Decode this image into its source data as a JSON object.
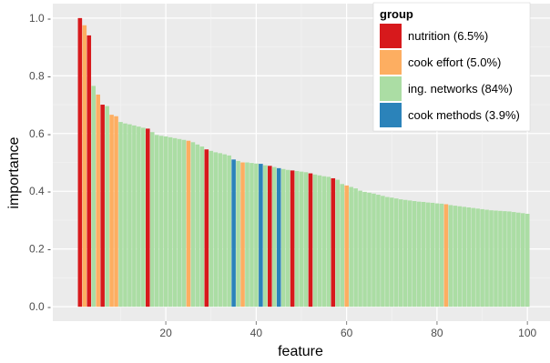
{
  "chart_data": {
    "type": "bar",
    "xlabel": "feature",
    "ylabel": "importance",
    "xlim": [
      -5,
      105
    ],
    "ylim": [
      -0.05,
      1.05
    ],
    "x_ticks": [
      20,
      40,
      60,
      80,
      100
    ],
    "x_tick_labels": [
      "20",
      "40",
      "60",
      "80",
      "100"
    ],
    "y_ticks": [
      0.0,
      0.2,
      0.4,
      0.6,
      0.8,
      1.0
    ],
    "y_tick_labels": [
      "0.0 -",
      "0.2 -",
      "0.4 -",
      "0.6 -",
      "0.8 -",
      "1.0 -"
    ],
    "grid": true,
    "panel_background": "#ebebeb",
    "legend": {
      "title": "group",
      "placement": "top-right",
      "entries": [
        {
          "label": "nutrition (6.5%)",
          "color": "#d7191c"
        },
        {
          "label": "cook effort (5.0%)",
          "color": "#fdae61"
        },
        {
          "label": "ing. networks (84%)",
          "color": "#abdda4"
        },
        {
          "label": "cook methods (3.9%)",
          "color": "#2b83ba"
        }
      ]
    },
    "colors": {
      "nutrition": "#d7191c",
      "cook effort": "#fdae61",
      "ing. networks": "#abdda4",
      "cook methods": "#2b83ba"
    },
    "x": [
      1,
      2,
      3,
      4,
      5,
      6,
      7,
      8,
      9,
      10,
      11,
      12,
      13,
      14,
      15,
      16,
      17,
      18,
      19,
      20,
      21,
      22,
      23,
      24,
      25,
      26,
      27,
      28,
      29,
      30,
      31,
      32,
      33,
      34,
      35,
      36,
      37,
      38,
      39,
      40,
      41,
      42,
      43,
      44,
      45,
      46,
      47,
      48,
      49,
      50,
      51,
      52,
      53,
      54,
      55,
      56,
      57,
      58,
      59,
      60,
      61,
      62,
      63,
      64,
      65,
      66,
      67,
      68,
      69,
      70,
      71,
      72,
      73,
      74,
      75,
      76,
      77,
      78,
      79,
      80,
      81,
      82,
      83,
      84,
      85,
      86,
      87,
      88,
      89,
      90,
      91,
      92,
      93,
      94,
      95,
      96,
      97,
      98,
      99,
      100
    ],
    "values": [
      1.0,
      0.975,
      0.94,
      0.765,
      0.735,
      0.7,
      0.695,
      0.665,
      0.66,
      0.64,
      0.635,
      0.632,
      0.628,
      0.624,
      0.62,
      0.617,
      0.605,
      0.595,
      0.592,
      0.59,
      0.587,
      0.584,
      0.581,
      0.578,
      0.575,
      0.57,
      0.562,
      0.555,
      0.545,
      0.54,
      0.535,
      0.532,
      0.528,
      0.524,
      0.51,
      0.505,
      0.5,
      0.5,
      0.498,
      0.496,
      0.495,
      0.49,
      0.488,
      0.484,
      0.48,
      0.477,
      0.474,
      0.472,
      0.47,
      0.468,
      0.466,
      0.462,
      0.458,
      0.455,
      0.452,
      0.45,
      0.445,
      0.44,
      0.425,
      0.42,
      0.415,
      0.41,
      0.402,
      0.398,
      0.395,
      0.392,
      0.388,
      0.384,
      0.38,
      0.378,
      0.375,
      0.372,
      0.37,
      0.368,
      0.366,
      0.364,
      0.363,
      0.361,
      0.36,
      0.358,
      0.357,
      0.355,
      0.352,
      0.35,
      0.348,
      0.346,
      0.344,
      0.342,
      0.34,
      0.338,
      0.336,
      0.334,
      0.333,
      0.332,
      0.331,
      0.33,
      0.328,
      0.326,
      0.324,
      0.322
    ],
    "groups": [
      "nutrition",
      "cook effort",
      "nutrition",
      "ing. networks",
      "cook effort",
      "nutrition",
      "ing. networks",
      "cook effort",
      "cook effort",
      "ing. networks",
      "ing. networks",
      "ing. networks",
      "ing. networks",
      "ing. networks",
      "ing. networks",
      "nutrition",
      "ing. networks",
      "ing. networks",
      "ing. networks",
      "ing. networks",
      "ing. networks",
      "ing. networks",
      "ing. networks",
      "ing. networks",
      "cook effort",
      "ing. networks",
      "ing. networks",
      "ing. networks",
      "nutrition",
      "ing. networks",
      "ing. networks",
      "ing. networks",
      "ing. networks",
      "ing. networks",
      "cook methods",
      "ing. networks",
      "cook effort",
      "ing. networks",
      "ing. networks",
      "ing. networks",
      "cook methods",
      "ing. networks",
      "nutrition",
      "ing. networks",
      "cook methods",
      "ing. networks",
      "ing. networks",
      "nutrition",
      "ing. networks",
      "ing. networks",
      "ing. networks",
      "nutrition",
      "ing. networks",
      "ing. networks",
      "ing. networks",
      "ing. networks",
      "nutrition",
      "ing. networks",
      "ing. networks",
      "cook effort",
      "ing. networks",
      "ing. networks",
      "ing. networks",
      "ing. networks",
      "ing. networks",
      "ing. networks",
      "ing. networks",
      "ing. networks",
      "ing. networks",
      "ing. networks",
      "ing. networks",
      "ing. networks",
      "ing. networks",
      "ing. networks",
      "ing. networks",
      "ing. networks",
      "ing. networks",
      "ing. networks",
      "ing. networks",
      "ing. networks",
      "ing. networks",
      "cook effort",
      "ing. networks",
      "ing. networks",
      "ing. networks",
      "ing. networks",
      "ing. networks",
      "ing. networks",
      "ing. networks",
      "ing. networks",
      "ing. networks",
      "ing. networks",
      "ing. networks",
      "ing. networks",
      "ing. networks",
      "ing. networks",
      "ing. networks",
      "ing. networks",
      "ing. networks",
      "ing. networks"
    ]
  }
}
